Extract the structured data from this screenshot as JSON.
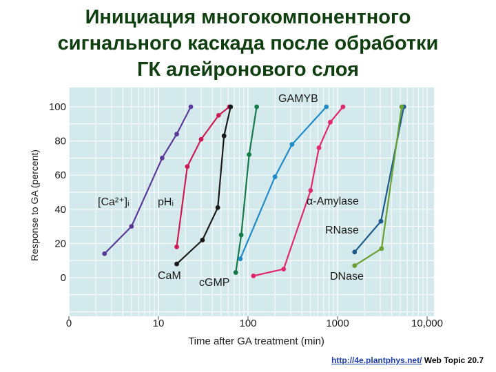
{
  "title_lines": [
    "Инициация многокомпонентного",
    "сигнального каскада после обработки",
    "ГК алейронового слоя"
  ],
  "footer": {
    "url": "http://4e.plantphys.net/",
    "text": "Web Topic 20.7"
  },
  "chart_data": {
    "type": "line",
    "xlabel": "Time after GA treatment (min)",
    "ylabel": "Response to GA (percent)",
    "xscale": "log",
    "xticks": [
      {
        "value": 1,
        "label": "0"
      },
      {
        "value": 10,
        "label": "10"
      },
      {
        "value": 100,
        "label": "100"
      },
      {
        "value": 1000,
        "label": "1000"
      },
      {
        "value": 10000,
        "label": "10,000"
      }
    ],
    "yticks": [
      0,
      20,
      40,
      60,
      80,
      100
    ],
    "ylim": [
      0,
      100
    ],
    "background": "#d4e9ec",
    "series": [
      {
        "name": "[Ca²⁺]ᵢ",
        "color": "#5b3a9a",
        "x": [
          2.5,
          5,
          11,
          16,
          23
        ],
        "y": [
          14,
          30,
          70,
          84,
          100
        ]
      },
      {
        "name": "pHᵢ",
        "color": "#cc1a55",
        "x": [
          16,
          21,
          30,
          47,
          62
        ],
        "y": [
          18,
          65,
          81,
          95,
          100
        ]
      },
      {
        "name": "CaM",
        "color": "#1a1a1a",
        "x": [
          16,
          31,
          46,
          54,
          64
        ],
        "y": [
          8,
          22,
          41,
          83,
          100
        ]
      },
      {
        "name": "cGMP",
        "color": "#147a4a",
        "x": [
          73,
          84,
          103,
          125
        ],
        "y": [
          3,
          25,
          72,
          100
        ]
      },
      {
        "name": "GAMYB",
        "color": "#1f8ac8",
        "x": [
          82,
          200,
          310,
          750
        ],
        "y": [
          11,
          59,
          78,
          100
        ]
      },
      {
        "name": "α-Amylase",
        "color": "#e0286e",
        "x": [
          115,
          250,
          500,
          620,
          830,
          1150
        ],
        "y": [
          1,
          5,
          51,
          76,
          91,
          100
        ]
      },
      {
        "name": "RNase",
        "color": "#1b5a8a",
        "x": [
          1550,
          3050,
          5500
        ],
        "y": [
          15,
          33,
          100
        ]
      },
      {
        "name": "DNase",
        "color": "#6aa033",
        "x": [
          1550,
          3100,
          5200
        ],
        "y": [
          7,
          17,
          100
        ]
      }
    ]
  }
}
